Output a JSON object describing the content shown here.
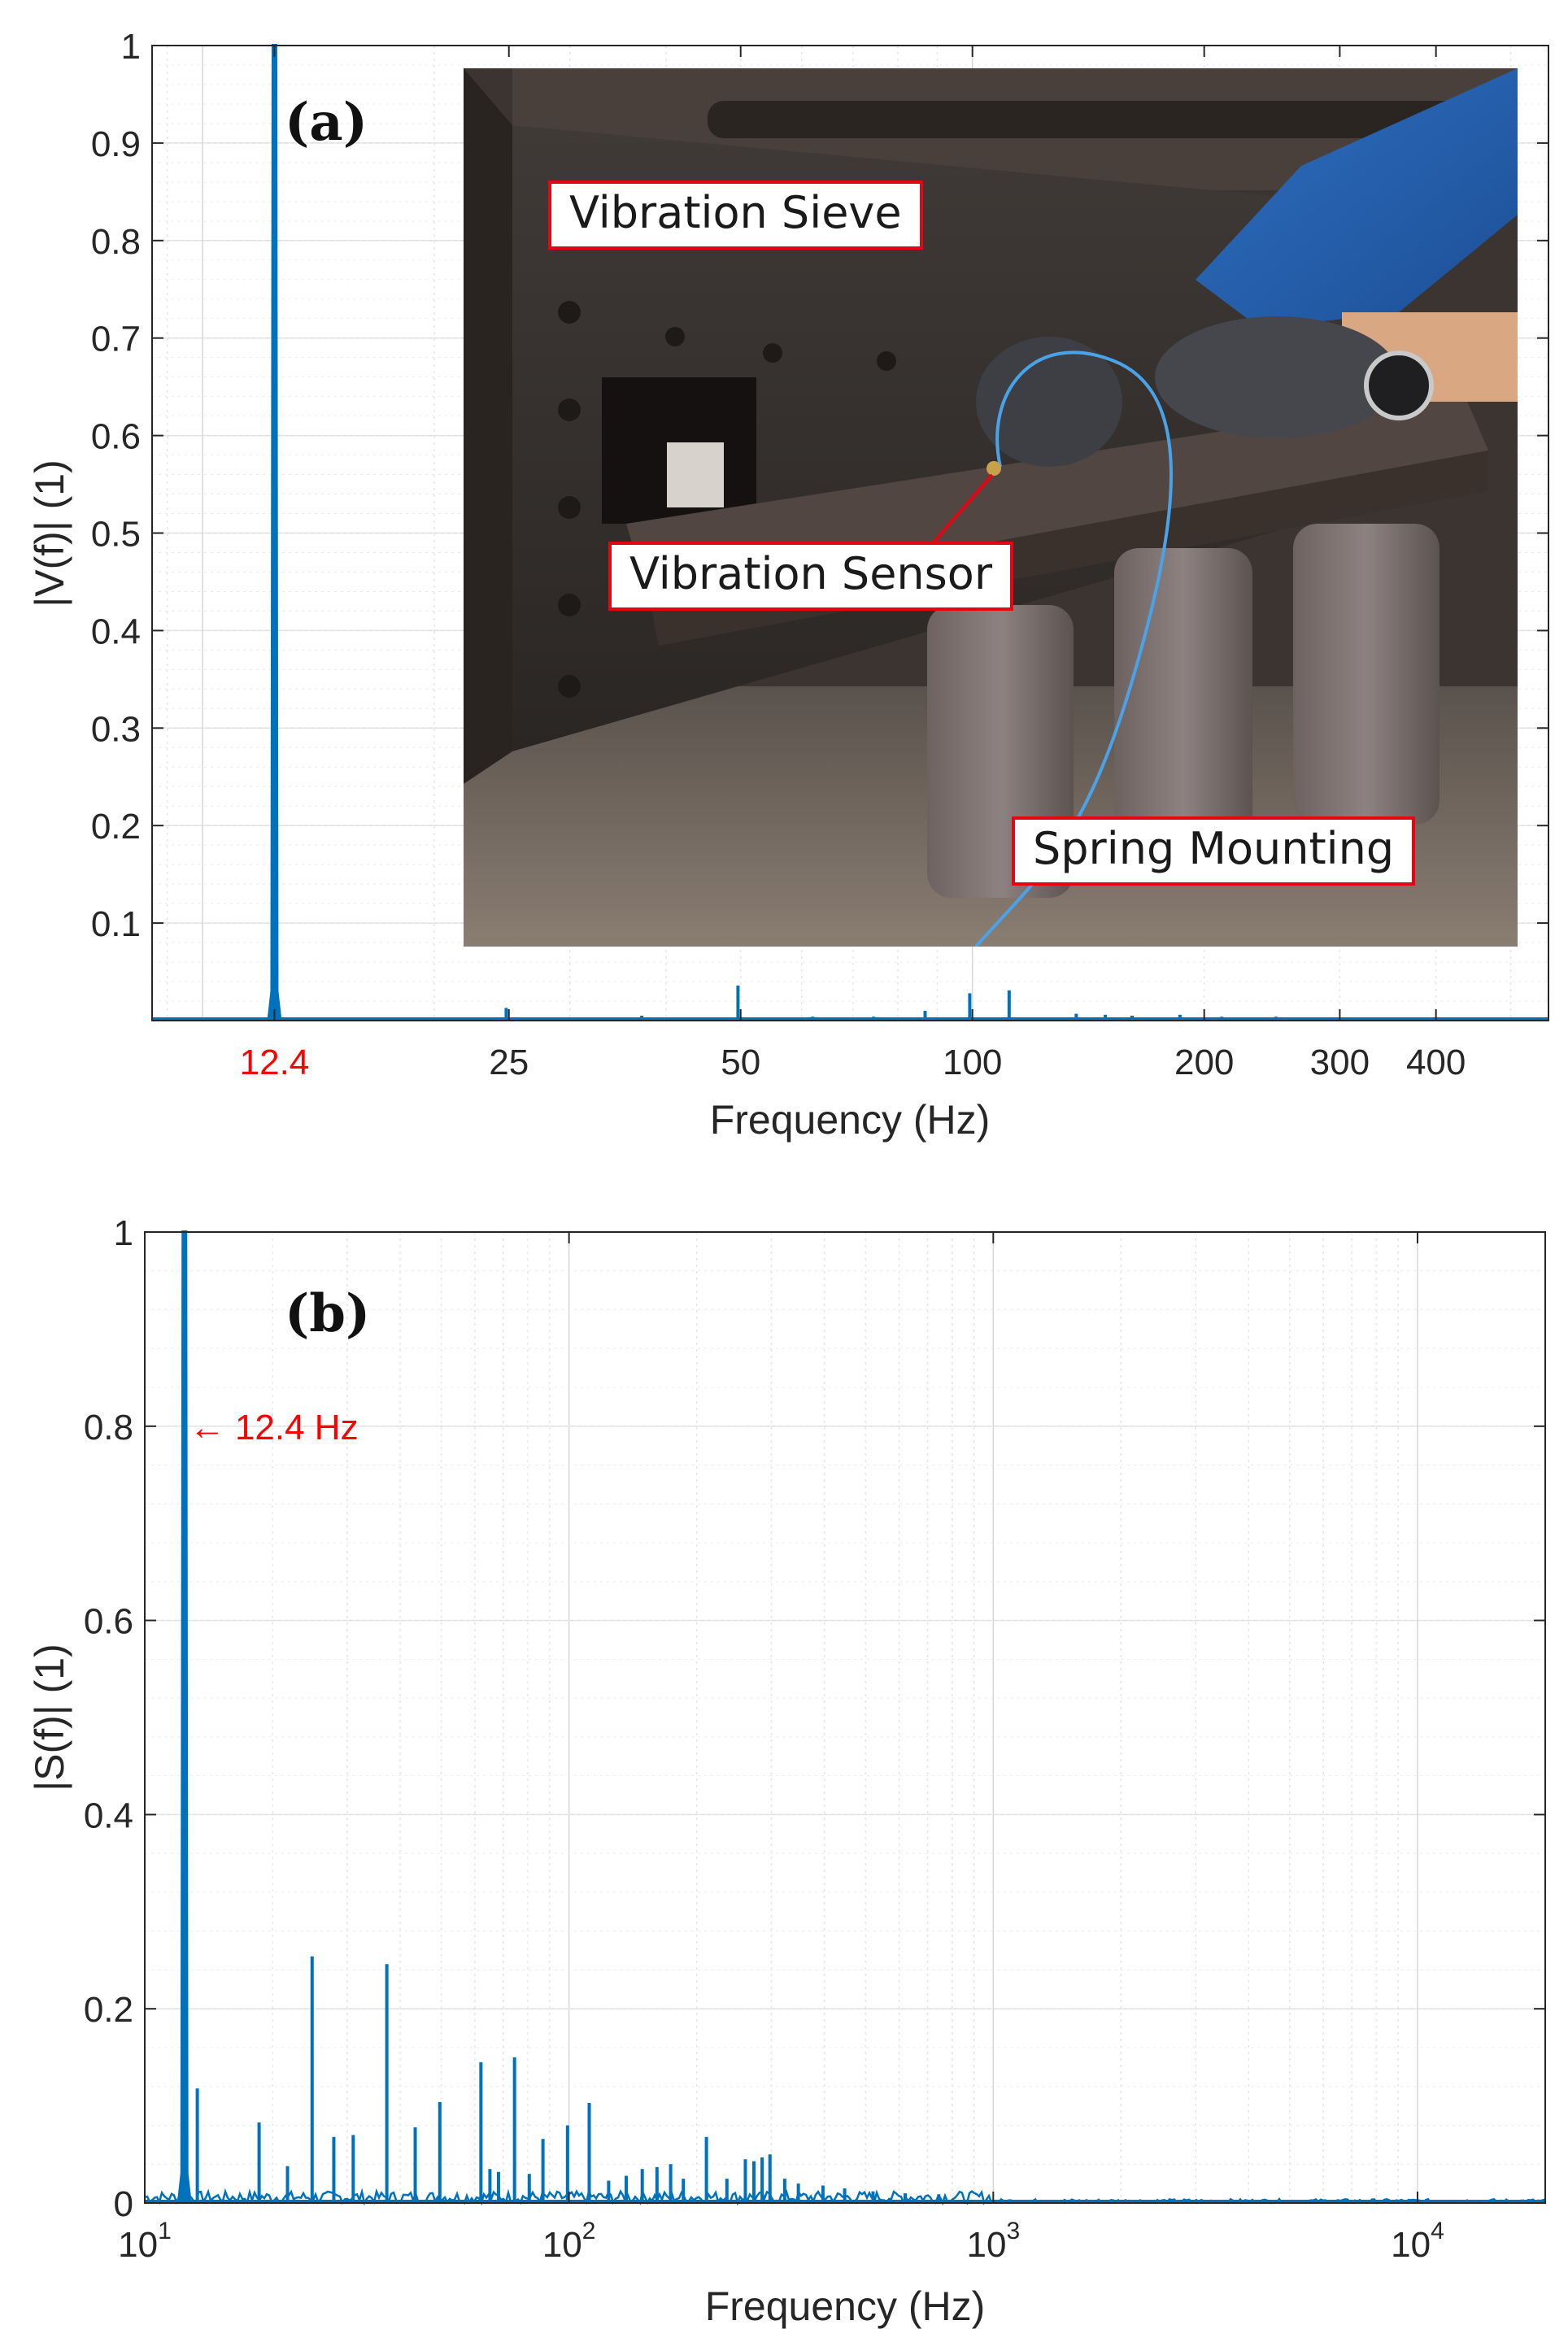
{
  "chart_data": [
    {
      "panel_label": "(a)",
      "type": "line",
      "xscale": "log",
      "xlim": [
        8.6,
        560
      ],
      "ylim": [
        0,
        1
      ],
      "xlabel": "Frequency (Hz)",
      "ylabel": "|V(f)| (1)",
      "xticks": [
        {
          "value": 12.4,
          "label": "12.4",
          "color": "#ff0000"
        },
        {
          "value": 25,
          "label": "25"
        },
        {
          "value": 50,
          "label": "50"
        },
        {
          "value": 100,
          "label": "100"
        },
        {
          "value": 200,
          "label": "200"
        },
        {
          "value": 300,
          "label": "300"
        },
        {
          "value": 400,
          "label": "400"
        }
      ],
      "yticks": [
        "0.1",
        "0.2",
        "0.3",
        "0.4",
        "0.5",
        "0.6",
        "0.7",
        "0.8",
        "0.9",
        "1"
      ],
      "grid": true,
      "line_color": "#0072bd",
      "series": [
        {
          "peaks": [
            {
              "x": 12.4,
              "y": 1.0
            },
            {
              "x": 24.8,
              "y": 0.013
            },
            {
              "x": 37.2,
              "y": 0.005
            },
            {
              "x": 49.6,
              "y": 0.036
            },
            {
              "x": 62.0,
              "y": 0.004
            },
            {
              "x": 74.4,
              "y": 0.004
            },
            {
              "x": 86.8,
              "y": 0.01
            },
            {
              "x": 99.2,
              "y": 0.028
            },
            {
              "x": 111.6,
              "y": 0.031
            },
            {
              "x": 136.4,
              "y": 0.007
            },
            {
              "x": 148.8,
              "y": 0.006
            },
            {
              "x": 161.2,
              "y": 0.005
            },
            {
              "x": 186.0,
              "y": 0.006
            },
            {
              "x": 210.8,
              "y": 0.004
            },
            {
              "x": 248.0,
              "y": 0.004
            },
            {
              "x": 297.6,
              "y": 0.003
            }
          ]
        }
      ],
      "inset_photo": {
        "callouts": [
          "Vibration Sieve",
          "Vibration Sensor",
          "Spring Mounting"
        ]
      }
    },
    {
      "panel_label": "(b)",
      "type": "line",
      "xscale": "log",
      "xlim": [
        10,
        20000
      ],
      "ylim": [
        0,
        1
      ],
      "xlabel": "Frequency (Hz)",
      "ylabel": "|S(f)| (1)",
      "xticks": [
        {
          "value": 10,
          "base": "10",
          "exp": "1"
        },
        {
          "value": 100,
          "base": "10",
          "exp": "2"
        },
        {
          "value": 1000,
          "base": "10",
          "exp": "3"
        },
        {
          "value": 10000,
          "base": "10",
          "exp": "4"
        }
      ],
      "yticks": [
        "0",
        "0.2",
        "0.4",
        "0.6",
        "0.8",
        "1"
      ],
      "grid": true,
      "line_color": "#0072bd",
      "annotation": {
        "text": "← 12.4 Hz",
        "x": 12.4,
        "y": 0.8,
        "color": "#ff0000"
      },
      "series": [
        {
          "peaks": [
            {
              "x": 12.4,
              "y": 1.0
            },
            {
              "x": 13.3,
              "y": 0.118
            },
            {
              "x": 18.6,
              "y": 0.083
            },
            {
              "x": 21.7,
              "y": 0.038
            },
            {
              "x": 24.8,
              "y": 0.254
            },
            {
              "x": 27.9,
              "y": 0.068
            },
            {
              "x": 31.0,
              "y": 0.07
            },
            {
              "x": 37.2,
              "y": 0.246
            },
            {
              "x": 43.4,
              "y": 0.078
            },
            {
              "x": 49.6,
              "y": 0.104
            },
            {
              "x": 62.0,
              "y": 0.145
            },
            {
              "x": 65.1,
              "y": 0.035
            },
            {
              "x": 68.2,
              "y": 0.032
            },
            {
              "x": 74.4,
              "y": 0.15
            },
            {
              "x": 80.6,
              "y": 0.03
            },
            {
              "x": 86.8,
              "y": 0.066
            },
            {
              "x": 99.2,
              "y": 0.08
            },
            {
              "x": 111.6,
              "y": 0.103
            },
            {
              "x": 124.0,
              "y": 0.023
            },
            {
              "x": 136.4,
              "y": 0.028
            },
            {
              "x": 148.8,
              "y": 0.035
            },
            {
              "x": 161.2,
              "y": 0.037
            },
            {
              "x": 173.6,
              "y": 0.04
            },
            {
              "x": 186.0,
              "y": 0.025
            },
            {
              "x": 210.8,
              "y": 0.068
            },
            {
              "x": 235.6,
              "y": 0.025
            },
            {
              "x": 260.4,
              "y": 0.045
            },
            {
              "x": 272.8,
              "y": 0.043
            },
            {
              "x": 285.2,
              "y": 0.047
            },
            {
              "x": 297.6,
              "y": 0.05
            },
            {
              "x": 322.4,
              "y": 0.025
            },
            {
              "x": 347.2,
              "y": 0.02
            },
            {
              "x": 396.8,
              "y": 0.018
            },
            {
              "x": 446.4,
              "y": 0.015
            },
            {
              "x": 520.8,
              "y": 0.012
            },
            {
              "x": 620.0,
              "y": 0.01
            },
            {
              "x": 744.0,
              "y": 0.009
            }
          ]
        }
      ]
    }
  ]
}
